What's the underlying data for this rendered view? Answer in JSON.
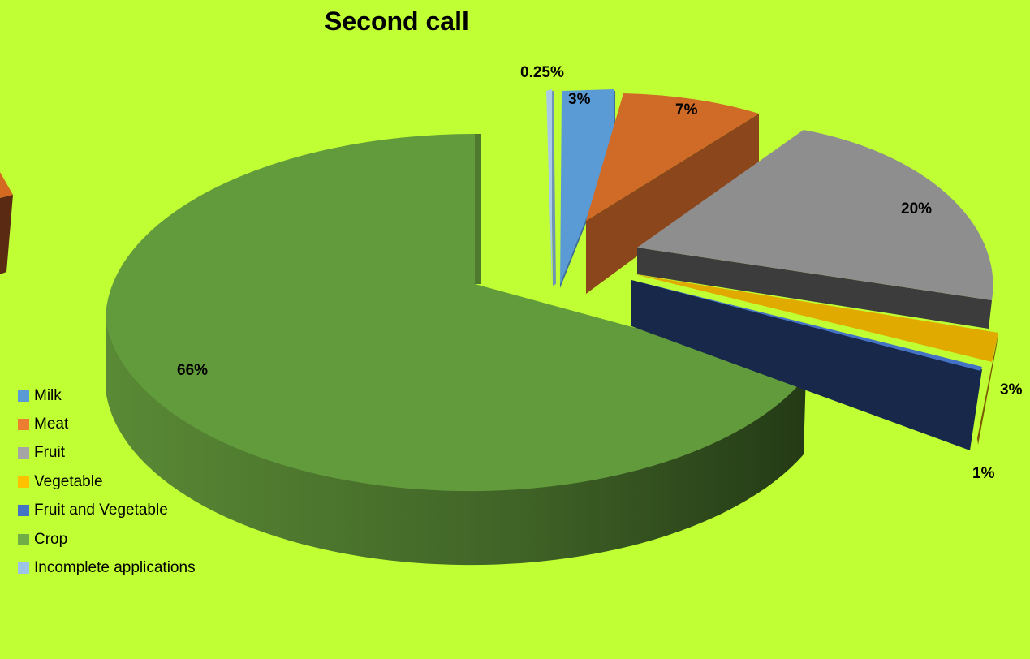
{
  "chart_data": {
    "type": "pie",
    "title": "Second call",
    "legend_position": "left",
    "slices": [
      {
        "name": "Milk",
        "value": 3,
        "label": "3%",
        "color": "#5b9bd5"
      },
      {
        "name": "Meat",
        "value": 7,
        "label": "7%",
        "color": "#ed7d31"
      },
      {
        "name": "Fruit",
        "value": 20,
        "label": "20%",
        "color": "#a5a5a5"
      },
      {
        "name": "Vegetable",
        "value": 3,
        "label": "3%",
        "color": "#ffc000"
      },
      {
        "name": "Fruit and Vegetable",
        "value": 1,
        "label": "1%",
        "color": "#4472c4"
      },
      {
        "name": "Crop",
        "value": 66,
        "label": "66%",
        "color": "#70ad47"
      },
      {
        "name": "Incomplete applications",
        "value": 0.25,
        "label": "0.25%",
        "color": "#9dc3e6"
      }
    ]
  }
}
